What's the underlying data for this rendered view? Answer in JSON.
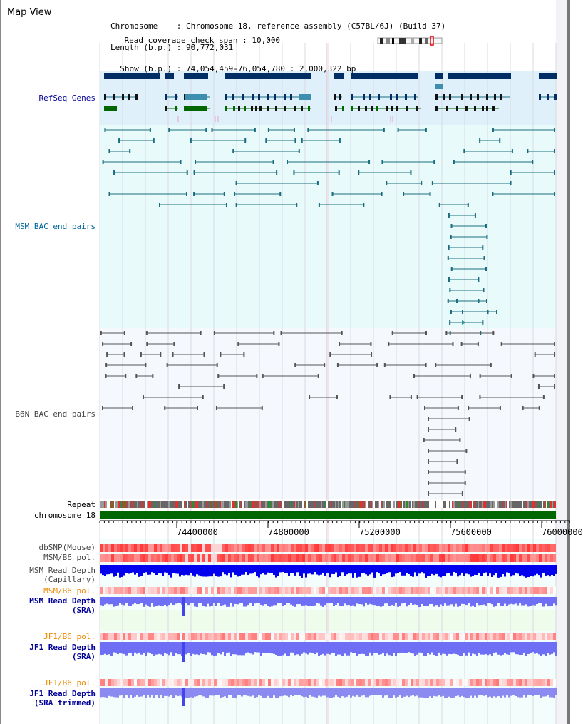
{
  "view_title": "Map View",
  "info": {
    "chromosome_label": "Chromosome    ",
    "chromosome_value": ": Chromosome 18, reference assembly (C57BL/6J) (Build 37)",
    "length_label": "Length (b.p.)",
    "length_value": ": 90,772,031",
    "show_label": "Show (b.p.)",
    "show_value": ": 74,054,459-76,054,780 : 2,000,322 bp",
    "span_label": "Read coverage check span",
    "span_value": ": 10,000"
  },
  "tracks": {
    "refseq": "RefSeq Genes",
    "msm_bac": "MSM BAC end pairs",
    "b6n_bac": "B6N BAC end pairs",
    "repeat": "Repeat",
    "chromosome": "chromosome 18",
    "dbsnp": "dbSNP(Mouse)",
    "msm_b6_pol_1": "MSM/B6 pol.",
    "msm_depth_cap_1": "MSM Read Depth",
    "msm_depth_cap_2": "(Capillary)",
    "msm_b6_pol_2": "MSM/B6 pol.",
    "msm_depth_sra_1": "MSM Read Depth",
    "msm_depth_sra_2": "(SRA)",
    "jf1_b6_pol_1": "JF1/B6 pol.",
    "jf1_depth_sra_1": "JF1 Read Depth",
    "jf1_depth_sra_2": "(SRA)",
    "jf1_b6_pol_2": "JF1/B6 pol.",
    "jf1_depth_trim_1": "JF1 Read Depth",
    "jf1_depth_trim_2": "(SRA trimmed)"
  },
  "ruler": {
    "ticks": [
      "74400000",
      "74800000",
      "75200000",
      "75600000",
      "76000000"
    ]
  },
  "colors": {
    "refseq_bg": "#dff0fa",
    "msm_bg": "#e9fafa",
    "b6n_bg": "#f5f8fc",
    "gene_dark": "#002d63",
    "gene_mid": "#3d8fb0",
    "gene_green": "#006600",
    "msm_line": "#1a6d80",
    "b6n_line": "#555555",
    "chrom_bar": "#006600",
    "msm_label": "#006699",
    "refseq_label": "#000099",
    "b6n_label": "#444444",
    "orange_label": "#ee8800",
    "blue_label": "#000099",
    "depth_dark": "#0000ee",
    "depth_light": "#6f6ff5"
  }
}
